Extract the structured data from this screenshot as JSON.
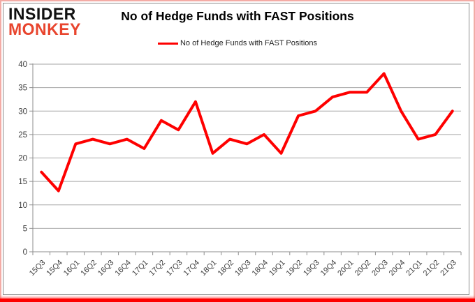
{
  "branding": {
    "logo_line1": "INSIDER",
    "logo_line2": "MONKEY",
    "logo_line1_color": "#111111",
    "logo_line2_color": "#e8452e"
  },
  "header": {
    "title": "No of Hedge Funds with FAST Positions"
  },
  "legend": {
    "label": "No of Hedge Funds with FAST Positions",
    "line_color": "#fe0000"
  },
  "chart_data": {
    "type": "line",
    "title": "No of Hedge Funds with FAST Positions",
    "categories": [
      "15Q3",
      "15Q4",
      "16Q1",
      "16Q2",
      "16Q3",
      "16Q4",
      "17Q1",
      "17Q2",
      "17Q3",
      "17Q4",
      "18Q1",
      "18Q2",
      "18Q3",
      "18Q4",
      "19Q1",
      "19Q2",
      "19Q3",
      "19Q4",
      "20Q1",
      "20Q2",
      "20Q3",
      "20Q4",
      "21Q1",
      "21Q2",
      "21Q3"
    ],
    "series": [
      {
        "name": "No of Hedge Funds with FAST Positions",
        "color": "#fe0000",
        "values": [
          17,
          13,
          23,
          24,
          23,
          24,
          22,
          28,
          26,
          32,
          21,
          24,
          23,
          25,
          21,
          29,
          30,
          33,
          34,
          34,
          38,
          30,
          24,
          25,
          30
        ]
      }
    ],
    "xlabel": "",
    "ylabel": "",
    "ylim": [
      0,
      40
    ],
    "yticks": [
      0,
      5,
      10,
      15,
      20,
      25,
      30,
      35,
      40
    ],
    "grid": true,
    "legend_position": "top-center"
  },
  "colors": {
    "gridline": "#a6a6a6",
    "axis": "#8e8e8e",
    "axis_text": "#3d3d3d",
    "frame_pink": "#f3aba5",
    "frame_red": "#fe0000",
    "chart_border": "#8c8c8c"
  }
}
